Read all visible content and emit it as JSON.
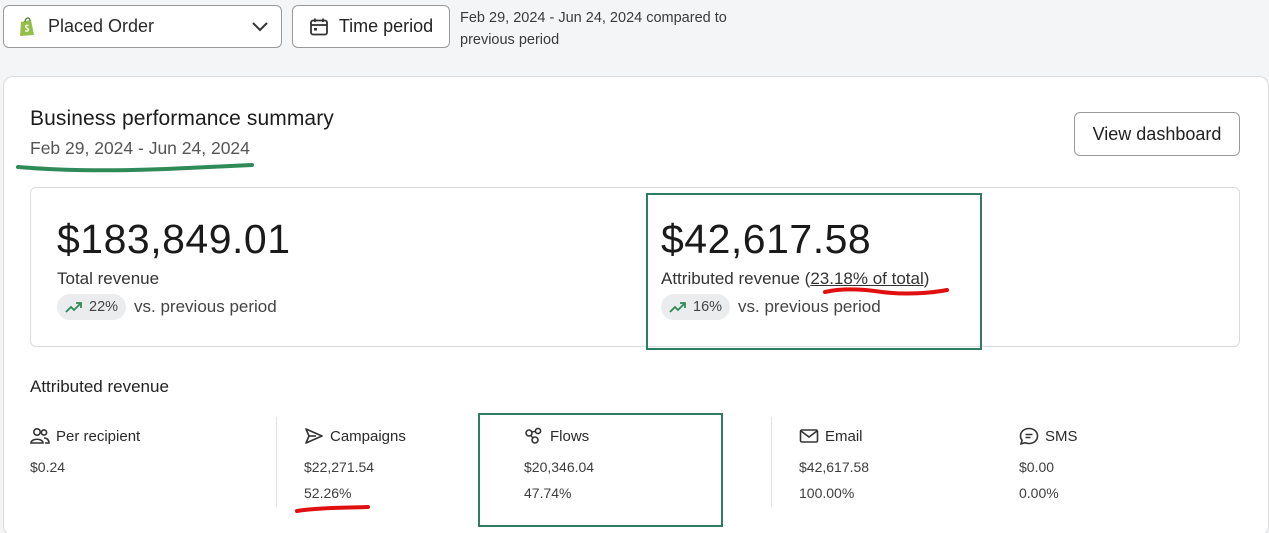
{
  "toolbar": {
    "metric_select": "Placed Order",
    "time_period_label": "Time period",
    "range_note": "Feb 29, 2024 - Jun 24, 2024 compared to previous period"
  },
  "summary": {
    "title": "Business performance summary",
    "date_range": "Feb 29, 2024 - Jun 24, 2024",
    "view_dashboard": "View dashboard"
  },
  "total_revenue": {
    "amount": "$183,849.01",
    "label": "Total revenue",
    "trend_pct": "22%",
    "trend_text": "vs. previous period"
  },
  "attributed_revenue": {
    "amount": "$42,617.58",
    "label_prefix": "Attributed revenue (",
    "label_share": "23.18% of total",
    "label_suffix": ")",
    "trend_pct": "16%",
    "trend_text": "vs. previous period"
  },
  "breakdown": {
    "title": "Attributed revenue",
    "columns": [
      {
        "name": "Per recipient",
        "icon": "people-icon",
        "value": "$0.24",
        "pct": ""
      },
      {
        "name": "Campaigns",
        "icon": "send-icon",
        "value": "$22,271.54",
        "pct": "52.26%"
      },
      {
        "name": "Flows",
        "icon": "flows-icon",
        "value": "$20,346.04",
        "pct": "47.74%"
      },
      {
        "name": "Email",
        "icon": "mail-icon",
        "value": "$42,617.58",
        "pct": "100.00%"
      },
      {
        "name": "SMS",
        "icon": "sms-icon",
        "value": "$0.00",
        "pct": "0.00%"
      }
    ]
  },
  "colors": {
    "highlight_green": "#2e7d62",
    "underline_red": "#e01010",
    "trend_green": "#2e8a57"
  }
}
